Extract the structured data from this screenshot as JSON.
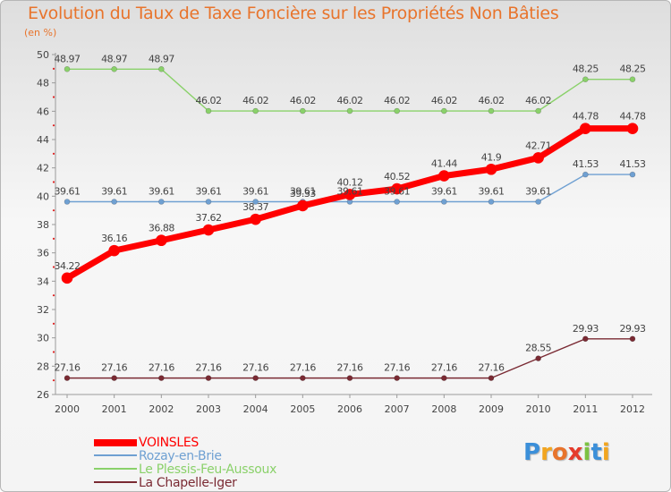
{
  "chart_data": {
    "type": "line",
    "title": "Evolution du Taux de Taxe Foncière sur les Propriétés Non Bâties",
    "subtitle": "(en %)",
    "xlabel": "",
    "ylabel": "",
    "categories": [
      "2000",
      "2001",
      "2002",
      "2003",
      "2004",
      "2005",
      "2006",
      "2007",
      "2008",
      "2009",
      "2010",
      "2011",
      "2012"
    ],
    "ylim": [
      26,
      50
    ],
    "yticks": [
      26,
      28,
      30,
      32,
      34,
      36,
      38,
      40,
      42,
      44,
      46,
      48,
      50
    ],
    "grid": false,
    "legend_position": "bottom-left",
    "series": [
      {
        "name": "VOINSLES",
        "color": "#ff0000",
        "emphasis": true,
        "values": [
          34.22,
          36.16,
          36.88,
          37.62,
          38.37,
          39.33,
          40.12,
          40.52,
          41.44,
          41.9,
          42.71,
          44.78,
          44.78
        ],
        "labels": [
          "34.22",
          "36.16",
          "36.88",
          "37.62",
          "38.37",
          "39.33",
          "40.12",
          "40.52",
          "41.44",
          "41.9",
          "42.71",
          "44.78",
          "44.78"
        ]
      },
      {
        "name": "Rozay-en-Brie",
        "color": "#6fa0d2",
        "emphasis": false,
        "values": [
          39.61,
          39.61,
          39.61,
          39.61,
          39.61,
          39.61,
          39.61,
          39.61,
          39.61,
          39.61,
          39.61,
          41.53,
          41.53
        ],
        "labels": [
          "39.61",
          "39.61",
          "39.61",
          "39.61",
          "39.61",
          "39.61",
          "39.61",
          "39.61",
          "39.61",
          "39.61",
          "39.61",
          "41.53",
          "41.53"
        ]
      },
      {
        "name": "Le Plessis-Feu-Aussoux",
        "color": "#8ad16a",
        "emphasis": false,
        "values": [
          48.97,
          48.97,
          48.97,
          46.02,
          46.02,
          46.02,
          46.02,
          46.02,
          46.02,
          46.02,
          46.02,
          48.25,
          48.25
        ],
        "labels": [
          "48.97",
          "48.97",
          "48.97",
          "46.02",
          "46.02",
          "46.02",
          "46.02",
          "46.02",
          "46.02",
          "46.02",
          "46.02",
          "48.25",
          "48.25"
        ]
      },
      {
        "name": "La Chapelle-Iger",
        "color": "#7a2a33",
        "emphasis": false,
        "values": [
          27.16,
          27.16,
          27.16,
          27.16,
          27.16,
          27.16,
          27.16,
          27.16,
          27.16,
          27.16,
          28.55,
          29.93,
          29.93
        ],
        "labels": [
          "27.16",
          "27.16",
          "27.16",
          "27.16",
          "27.16",
          "27.16",
          "27.16",
          "27.16",
          "27.16",
          "27.16",
          "28.55",
          "29.93",
          "29.93"
        ]
      }
    ]
  },
  "legend": {
    "items": [
      {
        "label": "VOINSLES",
        "color": "#ff0000"
      },
      {
        "label": "Rozay-en-Brie",
        "color": "#6fa0d2"
      },
      {
        "label": "Le Plessis-Feu-Aussoux",
        "color": "#8ad16a"
      },
      {
        "label": "La Chapelle-Iger",
        "color": "#7a2a33"
      }
    ]
  },
  "logo": {
    "text": "Proxiti",
    "letters": [
      "P",
      "r",
      "o",
      "x",
      "i",
      "t",
      "i"
    ],
    "colors": [
      "#3b8fd9",
      "#f2a51f",
      "#e8742c",
      "#e53b2c",
      "#7cc242",
      "#3b8fd9",
      "#f2a51f"
    ]
  }
}
